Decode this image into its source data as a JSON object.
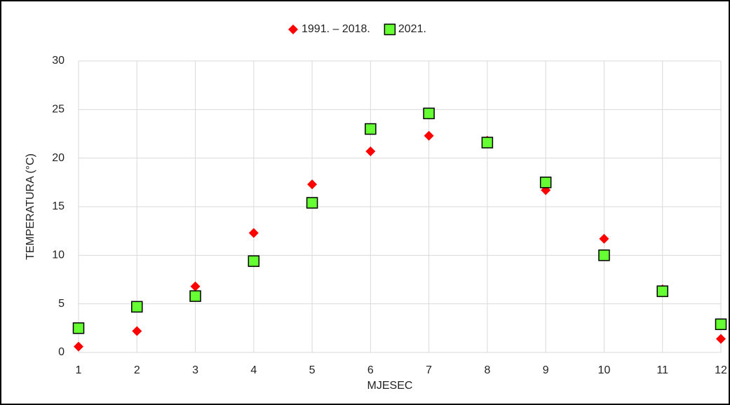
{
  "chart_data": {
    "type": "scatter",
    "x_label": "MJESEC",
    "y_label": "TEMPERATURA (°C)",
    "x": [
      1,
      2,
      3,
      4,
      5,
      6,
      7,
      8,
      9,
      10,
      11,
      12
    ],
    "series": [
      {
        "name": "1991. – 2018.",
        "color": "#ff0000",
        "marker": "diamond",
        "values": [
          0.6,
          2.2,
          6.8,
          12.3,
          17.3,
          20.7,
          22.3,
          21.8,
          16.7,
          11.7,
          6.5,
          1.4
        ]
      },
      {
        "name": "2021.",
        "color": "#66ff33",
        "marker": "square",
        "values": [
          2.5,
          4.7,
          5.8,
          9.4,
          15.4,
          23.0,
          24.6,
          21.6,
          17.5,
          10.0,
          6.3,
          2.9
        ]
      }
    ],
    "xlim": [
      1,
      12
    ],
    "xticks": [
      1,
      2,
      3,
      4,
      5,
      6,
      7,
      8,
      9,
      10,
      11,
      12
    ],
    "ylim": [
      0,
      30
    ],
    "yticks": [
      0,
      5,
      10,
      15,
      20,
      25,
      30
    ],
    "grid": true,
    "legend": "top"
  }
}
